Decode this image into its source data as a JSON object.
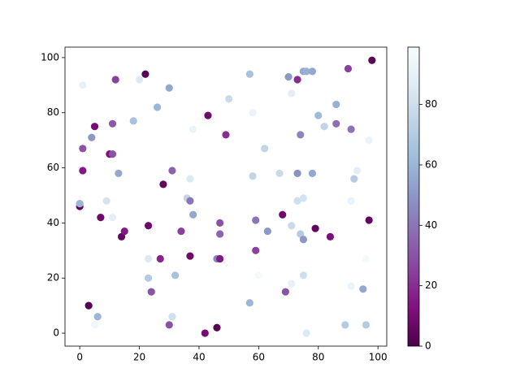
{
  "chart_data": {
    "type": "scatter",
    "colormap": "BuPu_r",
    "x": [
      0,
      0,
      1,
      1,
      1,
      3,
      4,
      5,
      5,
      6,
      7,
      9,
      10,
      11,
      11,
      11,
      12,
      13,
      14,
      15,
      18,
      20,
      22,
      23,
      23,
      23,
      24,
      26,
      27,
      28,
      30,
      30,
      31,
      31,
      32,
      34,
      36,
      37,
      37,
      37,
      38,
      38,
      42,
      43,
      46,
      46,
      47,
      47,
      47,
      49,
      50,
      57,
      57,
      58,
      58,
      59,
      59,
      60,
      62,
      63,
      67,
      68,
      69,
      70,
      71,
      71,
      71,
      73,
      73,
      73,
      74,
      74,
      75,
      75,
      75,
      75,
      76,
      76,
      78,
      78,
      79,
      80,
      82,
      84,
      86,
      86,
      89,
      90,
      91,
      91,
      91,
      92,
      93,
      95,
      96,
      96,
      97,
      97,
      98
    ],
    "y": [
      46,
      47,
      90,
      67,
      59,
      10,
      71,
      75,
      3,
      6,
      42,
      48,
      65,
      65,
      76,
      42,
      92,
      58,
      35,
      37,
      77,
      92,
      94,
      39,
      27,
      20,
      15,
      82,
      27,
      54,
      89,
      3,
      6,
      59,
      21,
      37,
      49,
      56,
      48,
      28,
      43,
      74,
      0,
      79,
      2,
      27,
      27,
      40,
      36,
      72,
      85,
      94,
      11,
      80,
      57,
      41,
      30,
      21,
      67,
      37,
      58,
      43,
      15,
      93,
      87,
      39,
      18,
      92,
      58,
      48,
      72,
      36,
      34,
      49,
      21,
      95,
      95,
      0,
      95,
      58,
      38,
      79,
      75,
      35,
      83,
      76,
      3,
      96,
      48,
      17,
      74,
      56,
      59,
      16,
      3,
      27,
      70,
      41,
      99
    ],
    "c": [
      5,
      60,
      90,
      30,
      15,
      2,
      50,
      10,
      95,
      60,
      8,
      82,
      12,
      30,
      32,
      88,
      25,
      55,
      5,
      15,
      65,
      85,
      3,
      8,
      85,
      70,
      30,
      60,
      18,
      5,
      55,
      30,
      80,
      35,
      65,
      25,
      75,
      85,
      40,
      8,
      55,
      92,
      10,
      8,
      2,
      45,
      15,
      30,
      35,
      20,
      78,
      65,
      60,
      92,
      75,
      40,
      25,
      97,
      75,
      50,
      78,
      8,
      30,
      50,
      88,
      78,
      90,
      20,
      48,
      80,
      45,
      70,
      50,
      82,
      80,
      55,
      58,
      85,
      55,
      55,
      5,
      62,
      75,
      12,
      58,
      38,
      70,
      25,
      92,
      93,
      40,
      70,
      88,
      55,
      70,
      97,
      92,
      5,
      3
    ],
    "xlim": [
      -4.95,
      102.95
    ],
    "ylim": [
      -4.7,
      103.8
    ],
    "xticks": [
      0,
      20,
      40,
      60,
      80,
      100
    ],
    "yticks": [
      0,
      20,
      40,
      60,
      80,
      100
    ],
    "clim": [
      0,
      99
    ],
    "cticks": [
      0,
      20,
      40,
      60,
      80
    ]
  }
}
